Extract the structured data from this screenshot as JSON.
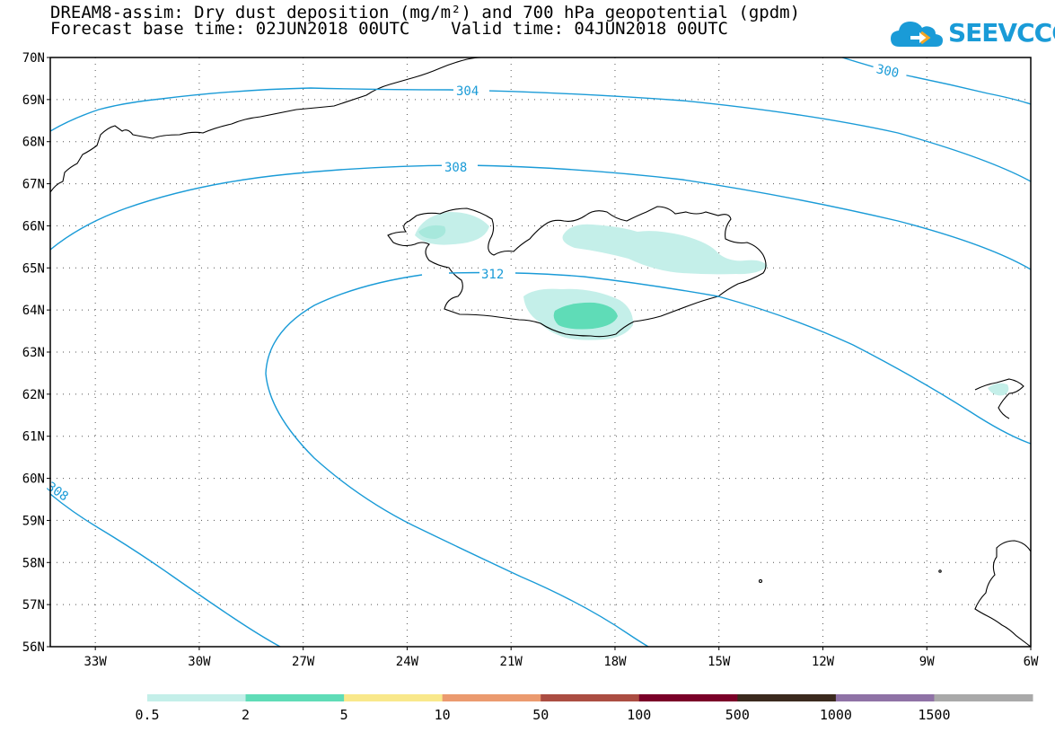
{
  "header": {
    "title_line1": "DREAM8-assim: Dry dust deposition (mg/m²) and 700 hPa geopotential (gpdm)",
    "title_line2": "Forecast base time: 02JUN2018 00UTC    Valid time: 04JUN2018 00UTC"
  },
  "logo": {
    "text": "SEEVCCC",
    "icon": "cloud-icon",
    "color": "#1a9bd7"
  },
  "map": {
    "lon_range": [
      -34.3,
      -6
    ],
    "lat_range": [
      56,
      70
    ],
    "grid": "dotted",
    "lat_labels": [
      "70N",
      "69N",
      "68N",
      "67N",
      "66N",
      "65N",
      "64N",
      "63N",
      "62N",
      "61N",
      "60N",
      "59N",
      "58N",
      "57N",
      "56N"
    ],
    "lon_labels": [
      "33W",
      "30W",
      "27W",
      "24W",
      "21W",
      "18W",
      "15W",
      "12W",
      "9W",
      "6W"
    ],
    "contour_color": "#1a9bd7",
    "contour_labels": [
      "300",
      "304",
      "308",
      "312",
      "308"
    ]
  },
  "legend": {
    "labels": [
      "0.5",
      "2",
      "5",
      "10",
      "50",
      "100",
      "500",
      "1000",
      "1500"
    ],
    "colors": [
      "#c4efe9",
      "#5fdcb7",
      "#f9e88b",
      "#eb9a6f",
      "#ab4d42",
      "#7a0028",
      "#3b2a1e",
      "#8f72a6",
      "#a9a9a9"
    ]
  }
}
